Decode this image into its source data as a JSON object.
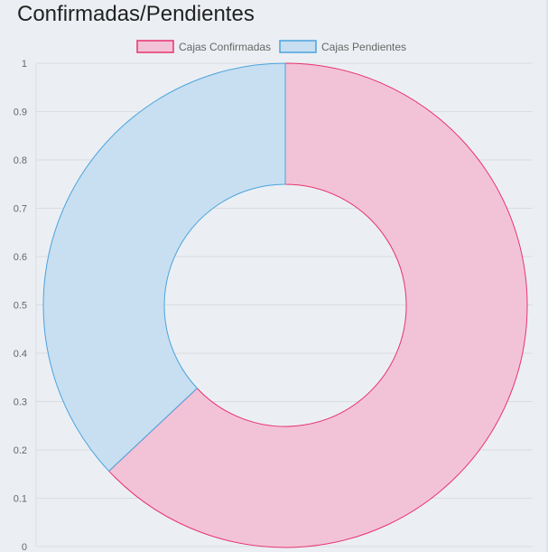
{
  "page": {
    "title": "Confirmadas/Pendientes"
  },
  "chart_data": {
    "type": "pie",
    "variant": "doughnut",
    "title": "Confirmadas/Pendientes",
    "categories": [
      "Cajas Confirmadas",
      "Cajas Pendientes"
    ],
    "values": [
      63,
      37
    ],
    "legend": {
      "position": "top",
      "entries": [
        {
          "label": "Cajas Confirmadas",
          "fill": "#f2c3d7",
          "stroke": "#e8336f"
        },
        {
          "label": "Cajas Pendientes",
          "fill": "#c7dff0",
          "stroke": "#4aa3df"
        }
      ]
    },
    "yaxis": {
      "ylim": [
        0,
        1
      ],
      "ticks": [
        "1",
        "0.9",
        "0.8",
        "0.7",
        "0.6",
        "0.5",
        "0.4",
        "0.3",
        "0.2",
        "0.1",
        "0"
      ]
    },
    "grid": true,
    "colors": {
      "grid": "#d9dde2",
      "tick_text": "#666666",
      "background": "#ebeff3"
    }
  }
}
